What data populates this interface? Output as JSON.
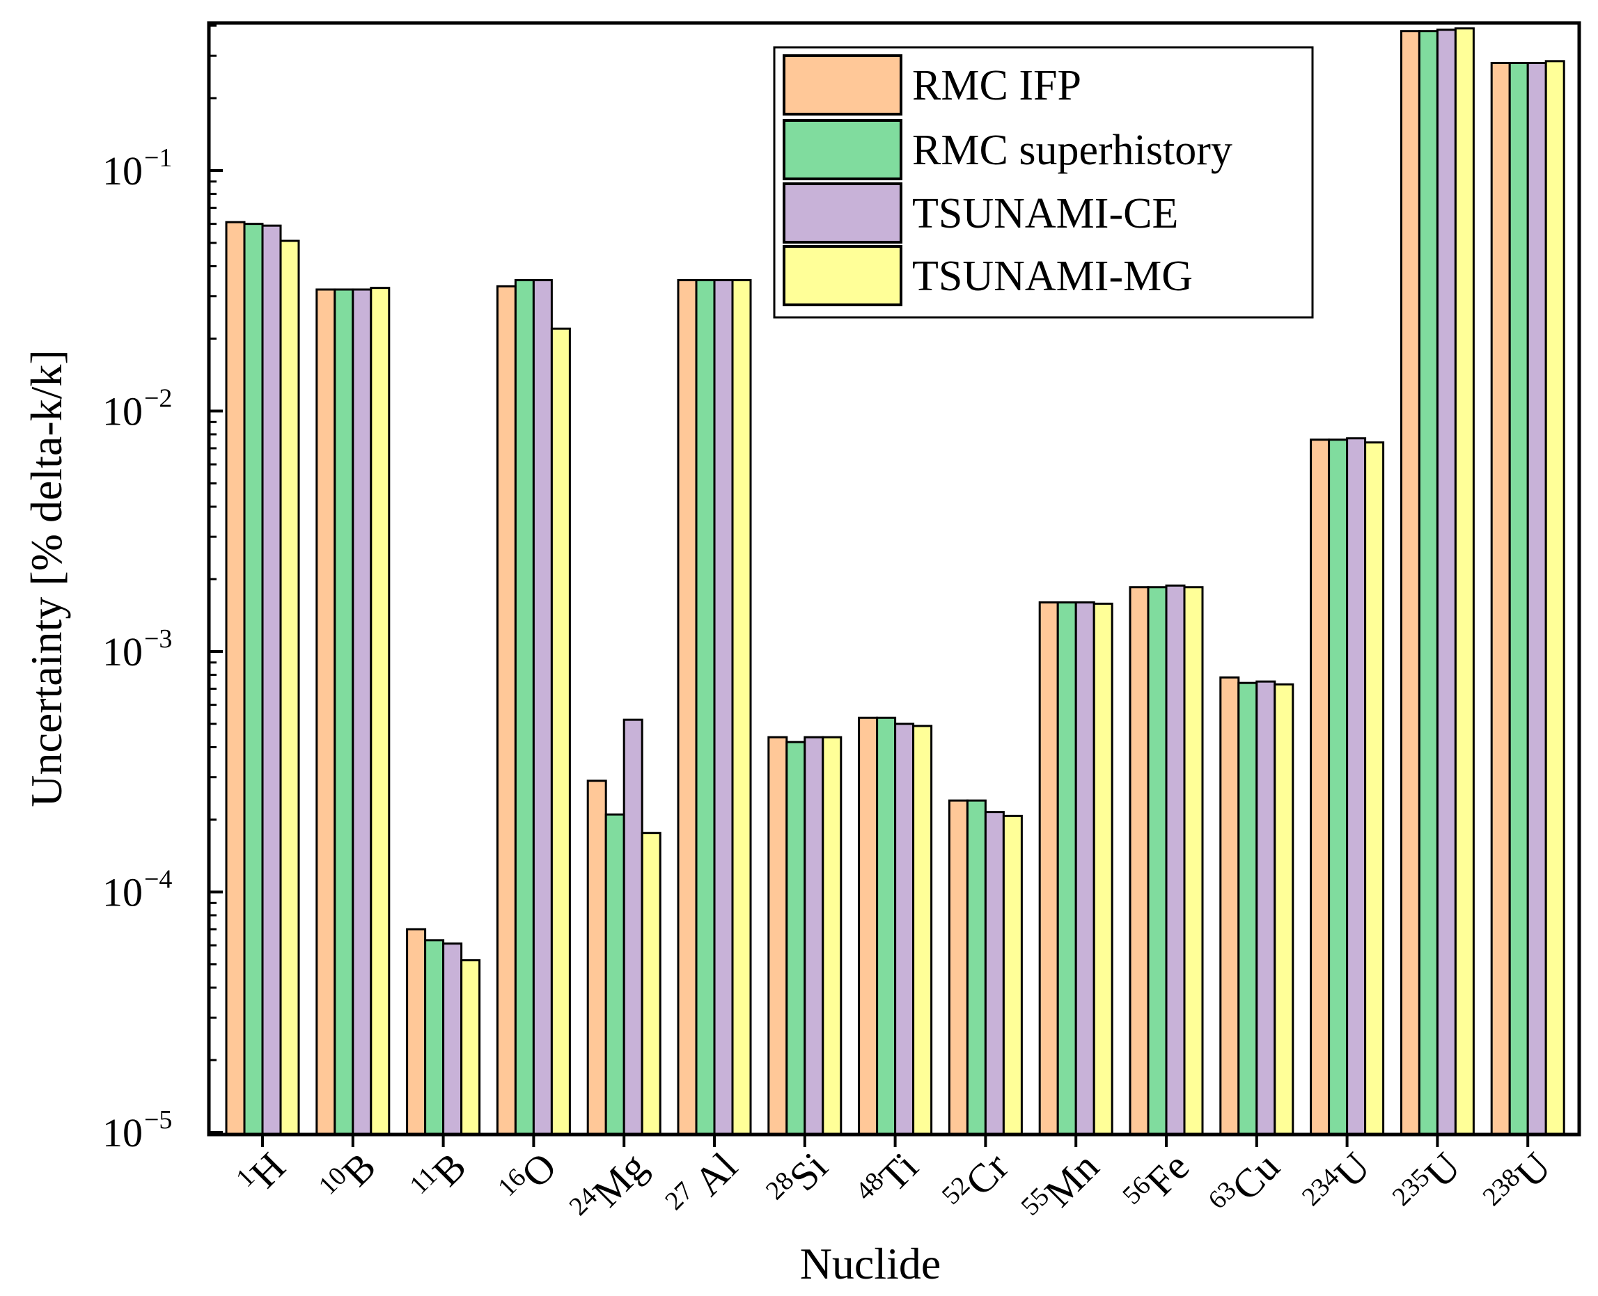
{
  "chart_data": {
    "type": "bar",
    "xlabel": "Nuclide",
    "ylabel": "Uncertainty [% delta-k/k]",
    "yscale": "log",
    "ylim": [
      1e-05,
      0.4
    ],
    "y_ticks": [
      {
        "base": "10",
        "exp": "−5"
      },
      {
        "base": "10",
        "exp": "−4"
      },
      {
        "base": "10",
        "exp": "−3"
      },
      {
        "base": "10",
        "exp": "−2"
      },
      {
        "base": "10",
        "exp": "−1"
      }
    ],
    "categories": [
      {
        "mass": "1",
        "symbol": "H"
      },
      {
        "mass": "10",
        "symbol": "B"
      },
      {
        "mass": "11",
        "symbol": "B"
      },
      {
        "mass": "16",
        "symbol": "O"
      },
      {
        "mass": "24",
        "symbol": "Mg"
      },
      {
        "mass": "27",
        "symbol": " Al"
      },
      {
        "mass": "28",
        "symbol": "Si"
      },
      {
        "mass": "48",
        "symbol": "Ti"
      },
      {
        "mass": "52",
        "symbol": "Cr"
      },
      {
        "mass": "55",
        "symbol": "Mn"
      },
      {
        "mass": "56",
        "symbol": "Fe"
      },
      {
        "mass": "63",
        "symbol": "Cu"
      },
      {
        "mass": "234",
        "symbol": "U"
      },
      {
        "mass": "235",
        "symbol": "U"
      },
      {
        "mass": "238",
        "symbol": "U"
      }
    ],
    "series": [
      {
        "name": "RMC IFP",
        "color": "#FFC898",
        "values": [
          0.061,
          0.032,
          7e-05,
          0.033,
          0.00029,
          0.035,
          0.00044,
          0.00053,
          0.00024,
          0.0016,
          0.00185,
          0.00078,
          0.0076,
          0.38,
          0.28
        ]
      },
      {
        "name": "RMC superhistory",
        "color": "#80DC9E",
        "values": [
          0.06,
          0.032,
          6.3e-05,
          0.035,
          0.00021,
          0.035,
          0.00042,
          0.00053,
          0.00024,
          0.0016,
          0.00185,
          0.00074,
          0.0076,
          0.38,
          0.28
        ]
      },
      {
        "name": "TSUNAMI-CE",
        "color": "#C8B2D8",
        "values": [
          0.059,
          0.032,
          6.1e-05,
          0.035,
          0.00052,
          0.035,
          0.00044,
          0.0005,
          0.000215,
          0.0016,
          0.00188,
          0.00075,
          0.0077,
          0.385,
          0.28
        ]
      },
      {
        "name": "TSUNAMI-MG",
        "color": "#FFFF98",
        "values": [
          0.051,
          0.0325,
          5.2e-05,
          0.022,
          0.000176,
          0.035,
          0.00044,
          0.00049,
          0.000207,
          0.00158,
          0.00185,
          0.00073,
          0.0074,
          0.39,
          0.285
        ]
      }
    ],
    "legend_position": "top-right",
    "grid": false
  }
}
